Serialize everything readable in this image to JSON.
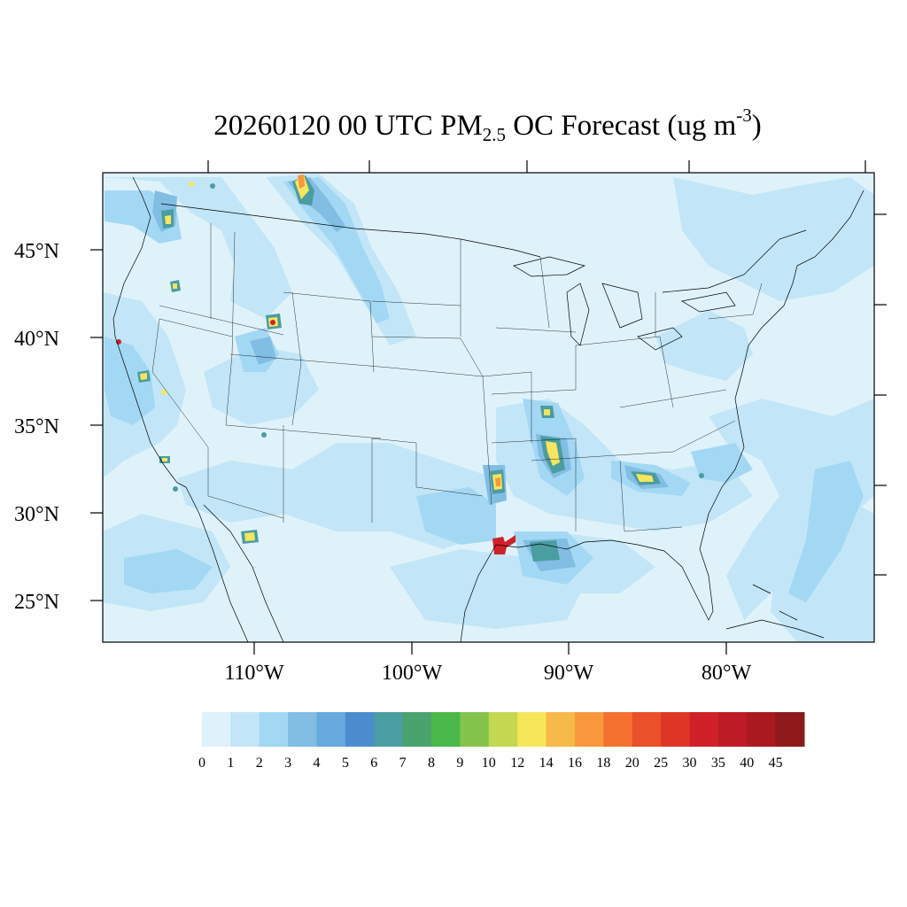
{
  "title": {
    "prefix": "20260120 00 UTC PM",
    "subscript": "2.5",
    "middle": " OC Forecast (ug m",
    "superscript": "-3",
    "suffix": ")"
  },
  "lat_labels": [
    "45°N",
    "40°N",
    "35°N",
    "30°N",
    "25°N"
  ],
  "lon_labels": [
    "110°W",
    "100°W",
    "90°W",
    "80°W"
  ],
  "colorbar": {
    "colors": [
      "#dff2fa",
      "#c2e6f7",
      "#a3d8f4",
      "#82bde4",
      "#66a9dc",
      "#4b8cce",
      "#4a9da0",
      "#4aa26c",
      "#4ab84a",
      "#84c44d",
      "#c5d751",
      "#f7e55a",
      "#f7b94a",
      "#f7983d",
      "#f47130",
      "#ea5029",
      "#de3626",
      "#d02129",
      "#bd1c26",
      "#a9191f",
      "#8e1a1c"
    ],
    "labels": [
      "0",
      "1",
      "2",
      "3",
      "4",
      "5",
      "6",
      "7",
      "8",
      "9",
      "10",
      "12",
      "14",
      "16",
      "18",
      "20",
      "25",
      "30",
      "35",
      "40",
      "45"
    ]
  },
  "colors": {
    "background": "#dff2fa",
    "light": "#c2e6f7",
    "medium": "#a3d8f4",
    "mid": "#82bde4",
    "darker": "#66a9dc",
    "teal": "#4a9da0",
    "green": "#4aa26c",
    "yellow": "#f7e55a",
    "orange": "#f7983d",
    "red": "#d02129",
    "darkred": "#a9191f",
    "border": "#000000"
  }
}
